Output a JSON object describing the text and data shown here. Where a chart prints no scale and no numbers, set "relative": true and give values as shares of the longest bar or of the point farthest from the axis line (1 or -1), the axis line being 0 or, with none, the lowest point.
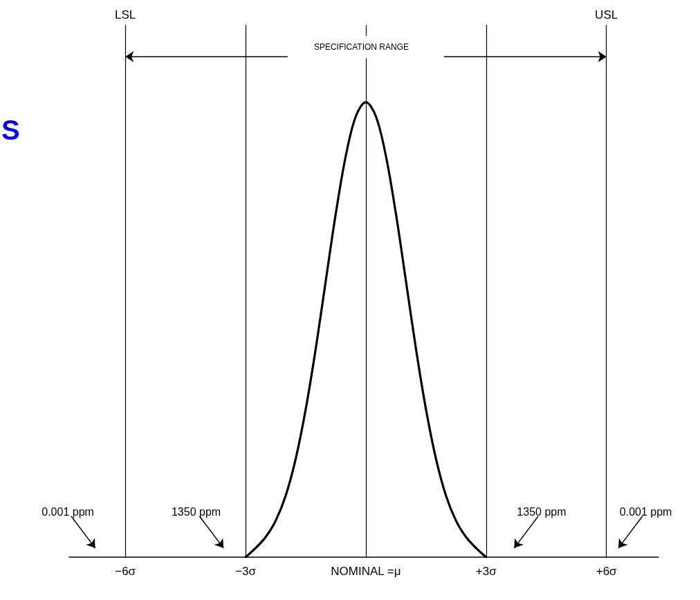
{
  "chart_data": {
    "type": "line",
    "relative": true,
    "x": [
      -3,
      -2.75,
      -2.5,
      -2.25,
      -2,
      -1.75,
      -1.5,
      -1.25,
      -1,
      -0.75,
      -0.5,
      -0.25,
      0,
      0.25,
      0.5,
      0.75,
      1,
      1.25,
      1.5,
      1.75,
      2,
      2.25,
      2.5,
      2.75,
      3
    ],
    "series": [
      {
        "color": "#000000",
        "values": [
          0,
          0.02,
          0.044,
          0.08,
          0.135,
          0.216,
          0.325,
          0.458,
          0.607,
          0.755,
          0.882,
          0.969,
          1,
          0.969,
          0.882,
          0.755,
          0.607,
          0.458,
          0.325,
          0.216,
          0.135,
          0.08,
          0.044,
          0.02,
          0
        ]
      }
    ],
    "xlim": [
      -7.4,
      7.3
    ],
    "xticks": [
      {
        "value": -6,
        "label": "−6σ"
      },
      {
        "value": -3,
        "label": "−3σ"
      },
      {
        "value": 0,
        "label": "NOMINAL =μ"
      },
      {
        "value": 3,
        "label": "+3σ"
      },
      {
        "value": 6,
        "label": "+6σ"
      }
    ],
    "ref_lines": [
      {
        "axis": "x",
        "value": -6,
        "label": "LSL",
        "color": "#000000"
      },
      {
        "axis": "x",
        "value": -3,
        "color": "#000000"
      },
      {
        "axis": "x",
        "value": 0,
        "color": "#000000"
      },
      {
        "axis": "x",
        "value": 3,
        "color": "#000000"
      },
      {
        "axis": "x",
        "value": 6,
        "label": "USL",
        "color": "#000000"
      }
    ],
    "annotations": [
      "S",
      "SPECIFICATION RANGE",
      "0.001 ppm",
      "1350 ppm",
      "1350 ppm",
      "0.001 ppm"
    ],
    "marker": "none",
    "line_style": "solid"
  }
}
